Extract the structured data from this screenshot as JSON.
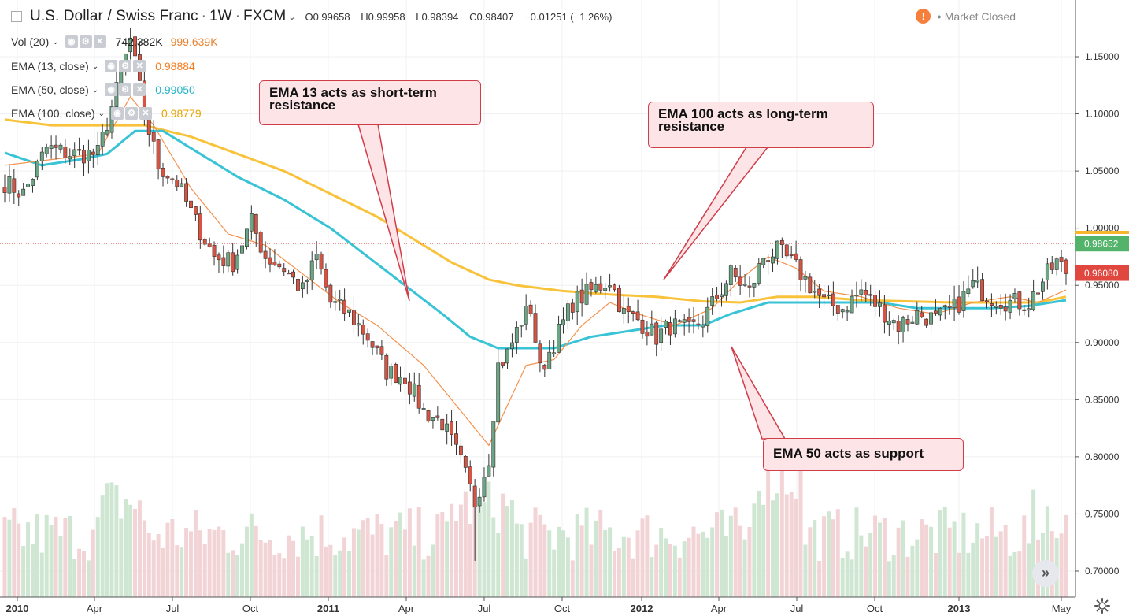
{
  "header": {
    "symbol": "U.S. Dollar / Swiss Franc",
    "interval": "1W",
    "exchange": "FXCM",
    "open": "O0.99658",
    "high": "H0.99958",
    "low": "L0.98394",
    "close": "C0.98407",
    "change": "−0.01251 (−1.26%)",
    "market_status": "Market Closed",
    "warning_glyph": "!"
  },
  "indicators": [
    {
      "name": "Vol (20)",
      "value": "742.382K",
      "value2": "999.639K",
      "color": "#e78330"
    },
    {
      "name": "EMA (13, close)",
      "value": "0.98884",
      "color": "#f57c1f"
    },
    {
      "name": "EMA (50, close)",
      "value": "0.99050",
      "color": "#22b5c9"
    },
    {
      "name": "EMA (100, close)",
      "value": "0.98779",
      "color": "#f6b72d"
    }
  ],
  "annotations": [
    "EMA 13 acts as short-term resistance",
    "EMA 100 acts as long-term resistance",
    "EMA 50 acts as support"
  ],
  "annotation_lines": {
    "a1": [
      "EMA 13 acts as short-term",
      "resistance"
    ],
    "a2": [
      "EMA 100 acts as long-term",
      "resistance"
    ],
    "a3": [
      "EMA 50 acts as support"
    ]
  },
  "price_labels": {
    "last": "0.98652",
    "ema": "0.96080"
  },
  "colors": {
    "up": "#6ba583",
    "down": "#d75442",
    "ema13": "#f5914b",
    "ema50": "#38c3d6",
    "ema100": "#f8c33a",
    "vol_up": "#cfe6d2",
    "vol_down": "#f2d4d6",
    "last_label_bg": "#53b36a",
    "ema_label_bg": "#e0473e"
  },
  "icons": {
    "nav": "double-chevron-right-icon",
    "settings": "gear-icon"
  },
  "chart_data": {
    "type": "candlestick",
    "interval": "1W",
    "y_range": [
      0.68,
      1.18
    ],
    "y_ticks": [
      "1.15000",
      "1.10000",
      "1.05000",
      "1.00000",
      "0.95000",
      "0.90000",
      "0.85000",
      "0.80000",
      "0.75000",
      "0.70000"
    ],
    "x_ticks": [
      "2010",
      "Apr",
      "Jul",
      "Oct",
      "2011",
      "Apr",
      "Jul",
      "Oct",
      "2012",
      "Apr",
      "Jul",
      "Oct",
      "2013",
      "May"
    ],
    "last_price": 0.98652,
    "current_label": 0.9608,
    "close_anchors": [
      [
        0,
        1.04
      ],
      [
        4,
        1.03
      ],
      [
        9,
        1.07
      ],
      [
        14,
        1.065
      ],
      [
        20,
        1.065
      ],
      [
        24,
        1.12
      ],
      [
        27,
        1.165
      ],
      [
        30,
        1.1
      ],
      [
        33,
        1.055
      ],
      [
        37,
        1.04
      ],
      [
        41,
        1.005
      ],
      [
        45,
        0.975
      ],
      [
        49,
        0.97
      ],
      [
        53,
        1.005
      ],
      [
        56,
        0.975
      ],
      [
        60,
        0.965
      ],
      [
        64,
        0.945
      ],
      [
        67,
        0.975
      ],
      [
        70,
        0.935
      ],
      [
        74,
        0.925
      ],
      [
        78,
        0.905
      ],
      [
        82,
        0.875
      ],
      [
        86,
        0.87
      ],
      [
        90,
        0.84
      ],
      [
        94,
        0.83
      ],
      [
        98,
        0.795
      ],
      [
        101,
        0.76
      ],
      [
        104,
        0.8
      ],
      [
        106,
        0.88
      ],
      [
        108,
        0.89
      ],
      [
        111,
        0.92
      ],
      [
        113,
        0.93
      ],
      [
        115,
        0.875
      ],
      [
        118,
        0.9
      ],
      [
        122,
        0.935
      ],
      [
        126,
        0.945
      ],
      [
        130,
        0.955
      ],
      [
        133,
        0.925
      ],
      [
        136,
        0.92
      ],
      [
        140,
        0.905
      ],
      [
        143,
        0.915
      ],
      [
        147,
        0.91
      ],
      [
        150,
        0.92
      ],
      [
        153,
        0.94
      ],
      [
        156,
        0.96
      ],
      [
        160,
        0.945
      ],
      [
        163,
        0.975
      ],
      [
        166,
        0.98
      ],
      [
        169,
        0.97
      ],
      [
        172,
        0.955
      ],
      [
        176,
        0.935
      ],
      [
        180,
        0.93
      ],
      [
        184,
        0.945
      ],
      [
        188,
        0.93
      ],
      [
        192,
        0.915
      ],
      [
        196,
        0.925
      ],
      [
        200,
        0.92
      ],
      [
        204,
        0.93
      ],
      [
        208,
        0.95
      ],
      [
        212,
        0.94
      ],
      [
        216,
        0.935
      ],
      [
        220,
        0.935
      ],
      [
        224,
        0.96
      ],
      [
        226,
        0.97
      ],
      [
        228,
        0.962
      ]
    ],
    "ema13_anchors": [
      [
        0,
        1.055
      ],
      [
        10,
        1.06
      ],
      [
        20,
        1.065
      ],
      [
        27,
        1.115
      ],
      [
        32,
        1.09
      ],
      [
        40,
        1.035
      ],
      [
        48,
        0.995
      ],
      [
        56,
        0.985
      ],
      [
        64,
        0.96
      ],
      [
        72,
        0.935
      ],
      [
        80,
        0.915
      ],
      [
        90,
        0.88
      ],
      [
        98,
        0.84
      ],
      [
        104,
        0.81
      ],
      [
        108,
        0.845
      ],
      [
        112,
        0.88
      ],
      [
        118,
        0.885
      ],
      [
        124,
        0.915
      ],
      [
        130,
        0.935
      ],
      [
        136,
        0.925
      ],
      [
        144,
        0.915
      ],
      [
        152,
        0.93
      ],
      [
        158,
        0.955
      ],
      [
        164,
        0.975
      ],
      [
        170,
        0.965
      ],
      [
        176,
        0.945
      ],
      [
        184,
        0.94
      ],
      [
        192,
        0.93
      ],
      [
        200,
        0.925
      ],
      [
        208,
        0.935
      ],
      [
        216,
        0.94
      ],
      [
        222,
        0.935
      ],
      [
        228,
        0.946
      ]
    ],
    "ema50_anchors": [
      [
        0,
        1.066
      ],
      [
        8,
        1.055
      ],
      [
        16,
        1.06
      ],
      [
        22,
        1.065
      ],
      [
        28,
        1.085
      ],
      [
        34,
        1.085
      ],
      [
        42,
        1.065
      ],
      [
        50,
        1.045
      ],
      [
        60,
        1.025
      ],
      [
        70,
        1.0
      ],
      [
        78,
        0.975
      ],
      [
        86,
        0.95
      ],
      [
        94,
        0.925
      ],
      [
        100,
        0.905
      ],
      [
        106,
        0.895
      ],
      [
        112,
        0.895
      ],
      [
        118,
        0.895
      ],
      [
        126,
        0.905
      ],
      [
        134,
        0.91
      ],
      [
        142,
        0.915
      ],
      [
        150,
        0.915
      ],
      [
        156,
        0.925
      ],
      [
        164,
        0.935
      ],
      [
        172,
        0.935
      ],
      [
        180,
        0.935
      ],
      [
        188,
        0.935
      ],
      [
        196,
        0.93
      ],
      [
        204,
        0.93
      ],
      [
        212,
        0.93
      ],
      [
        220,
        0.932
      ],
      [
        228,
        0.937
      ]
    ],
    "ema100_anchors": [
      [
        0,
        1.095
      ],
      [
        10,
        1.09
      ],
      [
        20,
        1.09
      ],
      [
        30,
        1.09
      ],
      [
        40,
        1.08
      ],
      [
        50,
        1.065
      ],
      [
        60,
        1.05
      ],
      [
        70,
        1.03
      ],
      [
        80,
        1.01
      ],
      [
        88,
        0.99
      ],
      [
        96,
        0.97
      ],
      [
        104,
        0.955
      ],
      [
        110,
        0.95
      ],
      [
        120,
        0.945
      ],
      [
        130,
        0.942
      ],
      [
        140,
        0.94
      ],
      [
        150,
        0.936
      ],
      [
        158,
        0.935
      ],
      [
        166,
        0.94
      ],
      [
        174,
        0.94
      ],
      [
        184,
        0.937
      ],
      [
        194,
        0.936
      ],
      [
        204,
        0.935
      ],
      [
        214,
        0.935
      ],
      [
        222,
        0.935
      ],
      [
        228,
        0.94
      ]
    ]
  }
}
